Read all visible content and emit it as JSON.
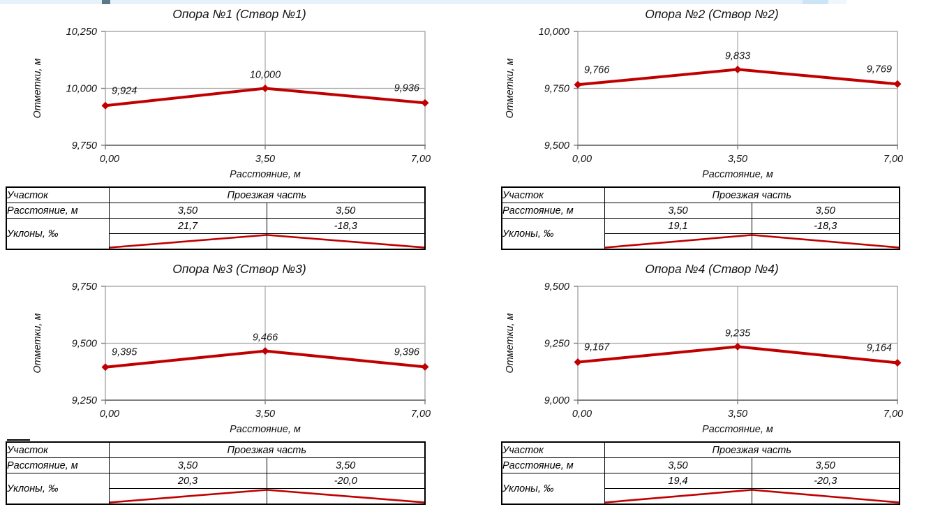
{
  "decor": {
    "top_strip_color": "#e6f2fb",
    "top_strip_square_color": "#5c7889",
    "series_color": "#C00000",
    "grid_color": "#A6A6A6",
    "axis_color": "#7F7F7F",
    "table_border_color": "#000000"
  },
  "chart_data": [
    {
      "type": "line",
      "title": "Опора №1 (Створ №1)",
      "ylabel": "Отметки, м",
      "xlabel": "Расстояние, м",
      "x": [
        0.0,
        3.5,
        7.0
      ],
      "x_tick_labels": [
        "0,00",
        "3,50",
        "7,00"
      ],
      "values": [
        9.924,
        10.0,
        9.936
      ],
      "point_labels": [
        "9,924",
        "10,000",
        "9,936"
      ],
      "ylim": [
        9.75,
        10.25
      ],
      "y_tick_labels": [
        "10,250",
        "10,000",
        "9,750"
      ],
      "grid": "center-cross",
      "legend": "none",
      "table": {
        "section_label": "Участок",
        "section_value": "Проезжая часть",
        "distance_label": "Расстояние, м",
        "distances": [
          "3,50",
          "3,50"
        ],
        "slopes_label": "Уклоны, ‰",
        "slopes": [
          "21,7",
          "-18,3"
        ]
      }
    },
    {
      "type": "line",
      "title": "Опора №2 (Створ №2)",
      "ylabel": "Отметки, м",
      "xlabel": "Расстояние, м",
      "x": [
        0.0,
        3.5,
        7.0
      ],
      "x_tick_labels": [
        "0,00",
        "3,50",
        "7,00"
      ],
      "values": [
        9.766,
        9.833,
        9.769
      ],
      "point_labels": [
        "9,766",
        "9,833",
        "9,769"
      ],
      "ylim": [
        9.5,
        10.0
      ],
      "y_tick_labels": [
        "10,000",
        "9,750",
        "9,500"
      ],
      "grid": "center-cross",
      "legend": "none",
      "table": {
        "section_label": "Участок",
        "section_value": "Проезжая часть",
        "distance_label": "Расстояние, м",
        "distances": [
          "3,50",
          "3,50"
        ],
        "slopes_label": "Уклоны, ‰",
        "slopes": [
          "19,1",
          "-18,3"
        ]
      }
    },
    {
      "type": "line",
      "title": "Опора №3 (Створ №3)",
      "ylabel": "Отметки, м",
      "xlabel": "Расстояние, м",
      "x": [
        0.0,
        3.5,
        7.0
      ],
      "x_tick_labels": [
        "0,00",
        "3,50",
        "7,00"
      ],
      "values": [
        9.395,
        9.466,
        9.396
      ],
      "point_labels": [
        "9,395",
        "9,466",
        "9,396"
      ],
      "ylim": [
        9.25,
        9.75
      ],
      "y_tick_labels": [
        "9,750",
        "9,500",
        "9,250"
      ],
      "grid": "center-cross",
      "legend": "none",
      "table": {
        "section_label": "Участок",
        "section_value": "Проезжая часть",
        "distance_label": "Расстояние, м",
        "distances": [
          "3,50",
          "3,50"
        ],
        "slopes_label": "Уклоны, ‰",
        "slopes": [
          "20,3",
          "-20,0"
        ]
      }
    },
    {
      "type": "line",
      "title": "Опора №4 (Створ №4)",
      "ylabel": "Отметки, м",
      "xlabel": "Расстояние, м",
      "x": [
        0.0,
        3.5,
        7.0
      ],
      "x_tick_labels": [
        "0,00",
        "3,50",
        "7,00"
      ],
      "values": [
        9.167,
        9.235,
        9.164
      ],
      "point_labels": [
        "9,167",
        "9,235",
        "9,164"
      ],
      "ylim": [
        9.0,
        9.5
      ],
      "y_tick_labels": [
        "9,500",
        "9,250",
        "9,000"
      ],
      "grid": "center-cross",
      "legend": "none",
      "table": {
        "section_label": "Участок",
        "section_value": "Проезжая часть",
        "distance_label": "Расстояние, м",
        "distances": [
          "3,50",
          "3,50"
        ],
        "slopes_label": "Уклоны, ‰",
        "slopes": [
          "19,4",
          "-20,3"
        ]
      }
    }
  ]
}
